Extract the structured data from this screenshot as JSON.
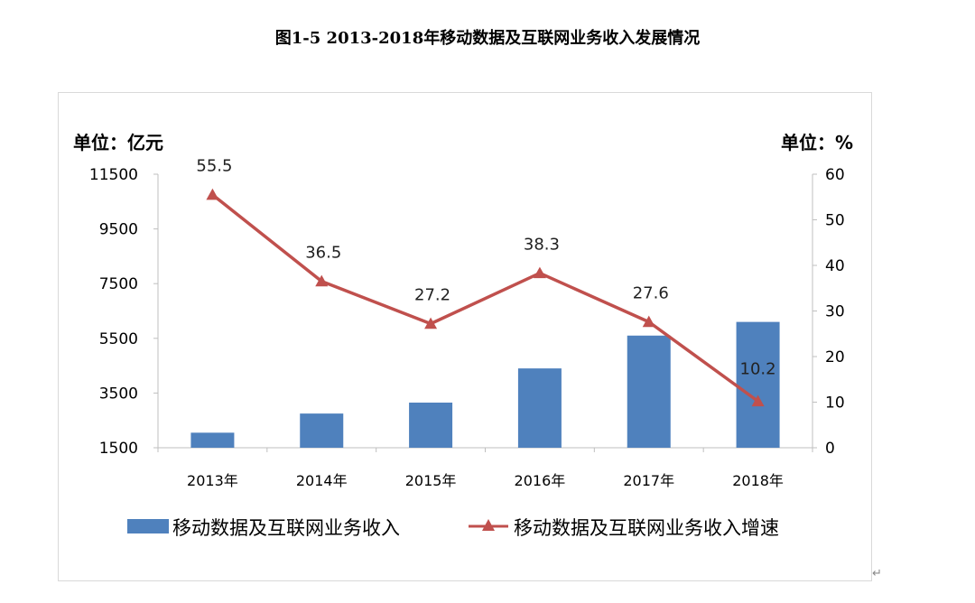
{
  "page_title": "图1-5  2013-2018年移动数据及互联网业务收入发展情况",
  "return_mark": "↵",
  "colors": {
    "bar": "#4f81bd",
    "line": "#c0504d",
    "axis": "#bfbfbf",
    "text": "#000000"
  },
  "chart_data": {
    "type": "bar",
    "categories": [
      "2013年",
      "2014年",
      "2015年",
      "2016年",
      "2017年",
      "2018年"
    ],
    "series": [
      {
        "name": "移动数据及互联网业务收入",
        "type": "bar",
        "axis": "left",
        "values": [
          2050,
          2750,
          3150,
          4400,
          5600,
          6100
        ]
      },
      {
        "name": "移动数据及互联网业务收入增速",
        "type": "line",
        "axis": "right",
        "values": [
          55.5,
          36.5,
          27.2,
          38.3,
          27.6,
          10.2
        ],
        "data_labels": [
          "55.5",
          "36.5",
          "27.2",
          "38.3",
          "27.6",
          "10.2"
        ]
      }
    ],
    "left_axis": {
      "unit_label": "单位：亿元",
      "ylim": [
        1500,
        11500
      ],
      "ticks": [
        1500,
        3500,
        5500,
        7500,
        9500,
        11500
      ]
    },
    "right_axis": {
      "unit_label": "单位：%",
      "ylim": [
        0,
        60
      ],
      "ticks": [
        0,
        10,
        20,
        30,
        40,
        50,
        60
      ]
    },
    "grid": false,
    "legend_position": "bottom"
  }
}
